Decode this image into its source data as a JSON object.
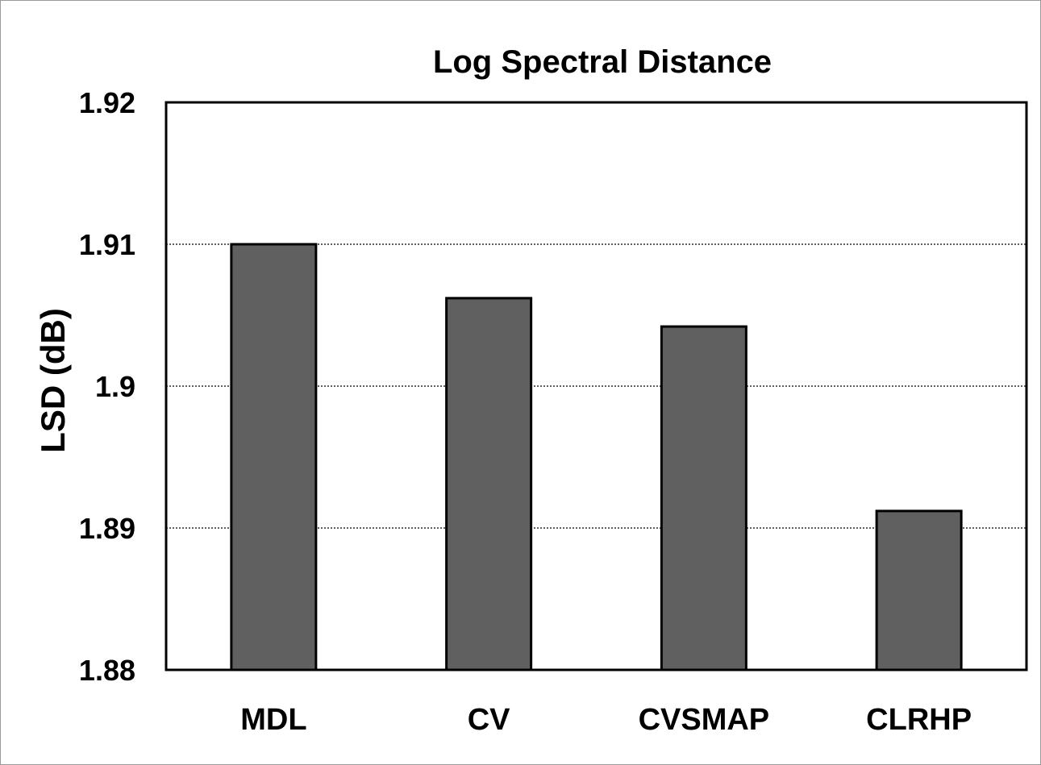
{
  "chart_data": {
    "type": "bar",
    "title": "Log Spectral Distance",
    "xlabel": "",
    "ylabel": "LSD (dB)",
    "categories": [
      "MDL",
      "CV",
      "CVSMAP",
      "CLRHP"
    ],
    "values": [
      1.91,
      1.9062,
      1.9042,
      1.8912
    ],
    "ylim": [
      1.88,
      1.92
    ],
    "yticks": [
      1.88,
      1.89,
      1.9,
      1.91,
      1.92
    ],
    "ytick_labels": [
      "1.88",
      "1.89",
      "1.9",
      "1.91",
      "1.92"
    ],
    "grid": "horizontal dotted",
    "legend": "none",
    "colors": {
      "bar_fill": "#606060",
      "bar_stroke": "#000000",
      "grid": "#000000"
    }
  }
}
